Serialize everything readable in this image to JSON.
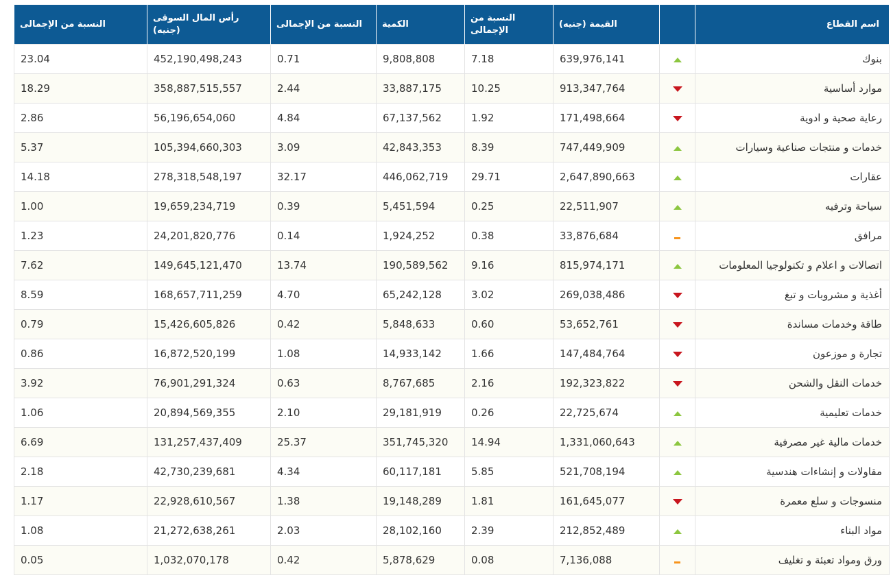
{
  "header": {
    "sector": "اسم القطاع",
    "value": "القيمة (جنيه)",
    "value_pct": "النسبة من الإجمالى",
    "volume": "الكمية",
    "volume_pct": "النسبة من الإجمالى",
    "market_cap": "رأس المال السوقى (جنيه)",
    "market_cap_pct": "النسبة من الإجمالى"
  },
  "colors": {
    "header_bg": "#0d5a94",
    "up": "#8cc63f",
    "down": "#c8161e",
    "flat": "#f7941d"
  },
  "rows": [
    {
      "sector": "بنوك",
      "trend": "up",
      "value": "639,976,141",
      "value_pct": "7.18",
      "volume": "9,808,808",
      "volume_pct": "0.71",
      "market_cap": "452,190,498,243",
      "market_cap_pct": "23.04"
    },
    {
      "sector": "موارد أساسية",
      "trend": "down",
      "value": "913,347,764",
      "value_pct": "10.25",
      "volume": "33,887,175",
      "volume_pct": "2.44",
      "market_cap": "358,887,515,557",
      "market_cap_pct": "18.29"
    },
    {
      "sector": "رعاية صحية و ادوية",
      "trend": "down",
      "value": "171,498,664",
      "value_pct": "1.92",
      "volume": "67,137,562",
      "volume_pct": "4.84",
      "market_cap": "56,196,654,060",
      "market_cap_pct": "2.86"
    },
    {
      "sector": "خدمات و منتجات صناعية وسيارات",
      "trend": "up",
      "value": "747,449,909",
      "value_pct": "8.39",
      "volume": "42,843,353",
      "volume_pct": "3.09",
      "market_cap": "105,394,660,303",
      "market_cap_pct": "5.37"
    },
    {
      "sector": "عقارات",
      "trend": "up",
      "value": "2,647,890,663",
      "value_pct": "29.71",
      "volume": "446,062,719",
      "volume_pct": "32.17",
      "market_cap": "278,318,548,197",
      "market_cap_pct": "14.18"
    },
    {
      "sector": "سياحة وترفيه",
      "trend": "up",
      "value": "22,511,907",
      "value_pct": "0.25",
      "volume": "5,451,594",
      "volume_pct": "0.39",
      "market_cap": "19,659,234,719",
      "market_cap_pct": "1.00"
    },
    {
      "sector": "مرافق",
      "trend": "flat",
      "value": "33,876,684",
      "value_pct": "0.38",
      "volume": "1,924,252",
      "volume_pct": "0.14",
      "market_cap": "24,201,820,776",
      "market_cap_pct": "1.23"
    },
    {
      "sector": "اتصالات و اعلام و تكنولوجيا المعلومات",
      "trend": "up",
      "value": "815,974,171",
      "value_pct": "9.16",
      "volume": "190,589,562",
      "volume_pct": "13.74",
      "market_cap": "149,645,121,470",
      "market_cap_pct": "7.62"
    },
    {
      "sector": "أغذية و مشروبات و تبغ",
      "trend": "down",
      "value": "269,038,486",
      "value_pct": "3.02",
      "volume": "65,242,128",
      "volume_pct": "4.70",
      "market_cap": "168,657,711,259",
      "market_cap_pct": "8.59"
    },
    {
      "sector": "طاقة وخدمات مساندة",
      "trend": "down",
      "value": "53,652,761",
      "value_pct": "0.60",
      "volume": "5,848,633",
      "volume_pct": "0.42",
      "market_cap": "15,426,605,826",
      "market_cap_pct": "0.79"
    },
    {
      "sector": "تجارة و موزعون",
      "trend": "down",
      "value": "147,484,764",
      "value_pct": "1.66",
      "volume": "14,933,142",
      "volume_pct": "1.08",
      "market_cap": "16,872,520,199",
      "market_cap_pct": "0.86"
    },
    {
      "sector": "خدمات النقل والشحن",
      "trend": "down",
      "value": "192,323,822",
      "value_pct": "2.16",
      "volume": "8,767,685",
      "volume_pct": "0.63",
      "market_cap": "76,901,291,324",
      "market_cap_pct": "3.92"
    },
    {
      "sector": "خدمات تعليمية",
      "trend": "up",
      "value": "22,725,674",
      "value_pct": "0.26",
      "volume": "29,181,919",
      "volume_pct": "2.10",
      "market_cap": "20,894,569,355",
      "market_cap_pct": "1.06"
    },
    {
      "sector": "خدمات مالية غير مصرفية",
      "trend": "up",
      "value": "1,331,060,643",
      "value_pct": "14.94",
      "volume": "351,745,320",
      "volume_pct": "25.37",
      "market_cap": "131,257,437,409",
      "market_cap_pct": "6.69"
    },
    {
      "sector": "مقاولات و إنشاءات هندسية",
      "trend": "up",
      "value": "521,708,194",
      "value_pct": "5.85",
      "volume": "60,117,181",
      "volume_pct": "4.34",
      "market_cap": "42,730,239,681",
      "market_cap_pct": "2.18"
    },
    {
      "sector": "منسوجات و سلع معمرة",
      "trend": "down",
      "value": "161,645,077",
      "value_pct": "1.81",
      "volume": "19,148,289",
      "volume_pct": "1.38",
      "market_cap": "22,928,610,567",
      "market_cap_pct": "1.17"
    },
    {
      "sector": "مواد البناء",
      "trend": "up",
      "value": "212,852,489",
      "value_pct": "2.39",
      "volume": "28,102,160",
      "volume_pct": "2.03",
      "market_cap": "21,272,638,261",
      "market_cap_pct": "1.08"
    },
    {
      "sector": "ورق ومواد تعبئة و تغليف",
      "trend": "flat",
      "value": "7,136,088",
      "value_pct": "0.08",
      "volume": "5,878,629",
      "volume_pct": "0.42",
      "market_cap": "1,032,070,178",
      "market_cap_pct": "0.05"
    }
  ]
}
